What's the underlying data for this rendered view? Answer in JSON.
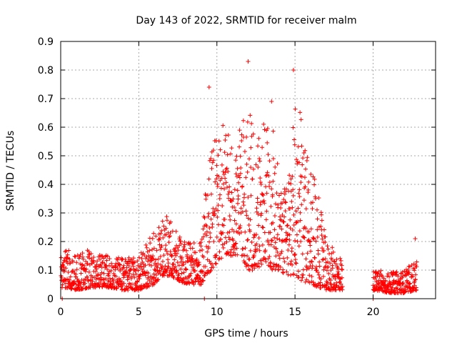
{
  "chart_data": {
    "type": "scatter",
    "title": "Day 143 of 2022, SRMTID for receiver malm",
    "xlabel": "GPS time / hours",
    "ylabel": "SRMTID / TECUs",
    "xlim": [
      0,
      24
    ],
    "ylim": [
      0,
      0.9
    ],
    "x_ticks": [
      0,
      5,
      10,
      15,
      20
    ],
    "x_tick_labels": [
      "0",
      "5",
      "10",
      "15",
      "20"
    ],
    "y_ticks": [
      0,
      0.1,
      0.2,
      0.3,
      0.4,
      0.5,
      0.6,
      0.7,
      0.8,
      0.9
    ],
    "y_tick_labels": [
      "0",
      "0.1",
      "0.2",
      "0.3",
      "0.4",
      "0.5",
      "0.6",
      "0.7",
      "0.8",
      "0.9"
    ],
    "grid": true,
    "marker": "plus",
    "series": [
      {
        "name": "SRMTID",
        "color": "#ff0000",
        "envelope_hours": [
          0,
          1,
          2,
          3,
          4,
          5,
          6,
          6.5,
          7,
          8,
          9,
          9.3,
          10,
          10.5,
          11,
          11.5,
          12,
          12.5,
          13,
          13.5,
          14,
          14.5,
          15,
          15.5,
          16,
          17,
          18,
          20,
          21,
          22,
          22.8
        ],
        "envelope_low": [
          0.04,
          0.03,
          0.04,
          0.04,
          0.03,
          0.03,
          0.05,
          0.08,
          0.08,
          0.05,
          0.05,
          0.08,
          0.12,
          0.15,
          0.15,
          0.15,
          0.1,
          0.1,
          0.12,
          0.1,
          0.1,
          0.08,
          0.08,
          0.06,
          0.05,
          0.03,
          0.03,
          0.03,
          0.02,
          0.02,
          0.03
        ],
        "envelope_high": [
          0.18,
          0.16,
          0.16,
          0.15,
          0.14,
          0.15,
          0.24,
          0.3,
          0.28,
          0.2,
          0.2,
          0.45,
          0.58,
          0.62,
          0.52,
          0.6,
          0.68,
          0.55,
          0.6,
          0.65,
          0.42,
          0.4,
          0.75,
          0.55,
          0.52,
          0.2,
          0.15,
          0.1,
          0.09,
          0.1,
          0.14
        ],
        "zero_points": [
          0.1,
          9.2,
          20.0
        ],
        "annotated_peaks": [
          {
            "x": 9.5,
            "y": 0.74
          },
          {
            "x": 12.0,
            "y": 0.83
          },
          {
            "x": 13.5,
            "y": 0.69
          },
          {
            "x": 14.9,
            "y": 0.8
          },
          {
            "x": 22.7,
            "y": 0.21
          }
        ]
      }
    ]
  }
}
